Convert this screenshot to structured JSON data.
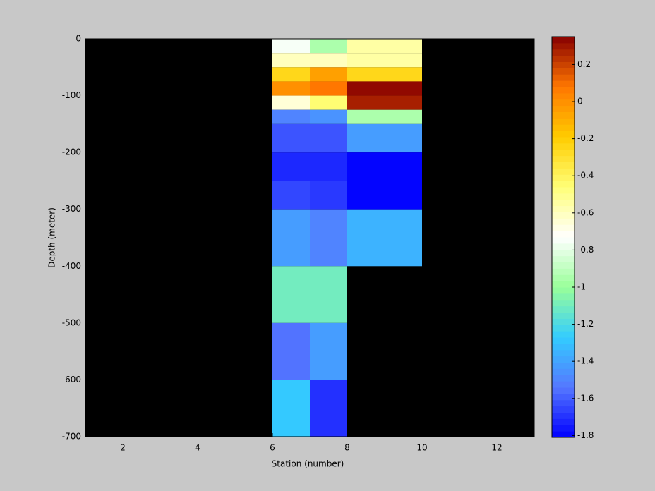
{
  "chart_data": {
    "type": "heatmap",
    "xlabel": "Station (number)",
    "ylabel": "Depth (meter)",
    "x_edges": [
      6,
      7,
      8,
      10
    ],
    "y_edges": [
      0,
      -25,
      -50,
      -75,
      -100,
      -125,
      -150,
      -200,
      -250,
      -300,
      -400,
      -500,
      -600,
      -700
    ],
    "values": [
      [
        -0.75,
        -0.95,
        -0.55
      ],
      [
        -0.6,
        -0.6,
        -0.55
      ],
      [
        -0.25,
        -0.05,
        -0.25
      ],
      [
        0.0,
        0.08,
        0.33
      ],
      [
        -0.65,
        -0.45,
        0.28
      ],
      [
        -1.5,
        -1.45,
        -0.95
      ],
      [
        -1.62,
        -1.62,
        -1.42
      ],
      [
        -1.72,
        -1.72,
        -1.8
      ],
      [
        -1.65,
        -1.68,
        -1.8
      ],
      [
        -1.42,
        -1.5,
        -1.35
      ],
      [
        -1.1,
        -1.1,
        null
      ],
      [
        -1.55,
        -1.42,
        null
      ],
      [
        -1.28,
        -1.7,
        null
      ]
    ],
    "xlim": [
      1,
      13
    ],
    "xticks": [
      2,
      4,
      6,
      8,
      10,
      12
    ],
    "ylim": [
      -700,
      0
    ],
    "yticks": [
      0,
      -100,
      -200,
      -300,
      -400,
      -500,
      -600,
      -700
    ],
    "clim": [
      -1.81,
      0.35
    ],
    "cticks": [
      -1.8,
      -1.6,
      -1.4,
      -1.2,
      -1,
      -0.8,
      -0.6,
      -0.4,
      -0.2,
      0,
      0.2
    ],
    "background_color": "#000000",
    "colormap": [
      "#0000ff",
      "#5577ff",
      "#33ccff",
      "#99ff99",
      "#ffffff",
      "#ffff77",
      "#ffcc00",
      "#ff7700",
      "#880000"
    ]
  }
}
